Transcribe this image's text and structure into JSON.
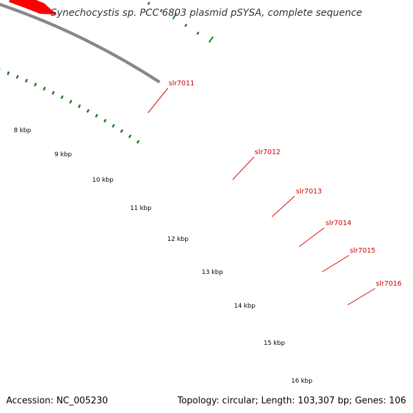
{
  "title": "Synechocystis sp. PCC 6803 plasmid pSYSA, complete sequence",
  "footer": {
    "accession": "Accession: NC_005230",
    "summary": "Topology: circular; Length: 103,307 bp; Genes: 106"
  },
  "scale_labels": [
    "8 kbp",
    "9 kbp",
    "10 kbp",
    "11 kbp",
    "12 kbp",
    "13 kbp",
    "14 kbp",
    "15 kbp",
    "16 kbp"
  ],
  "gene_labels": [
    "slr7011",
    "slr7012",
    "slr7013",
    "slr7014",
    "slr7015",
    "slr7016"
  ],
  "colors": {
    "cds": "#ff0000",
    "cds_edge": "#cc0000",
    "rna": "#ff1493",
    "gray_feature": "#6e6e6e",
    "backbone": "#888888",
    "ticks": "#1a7a1a",
    "label_lines": "#dd0000"
  }
}
